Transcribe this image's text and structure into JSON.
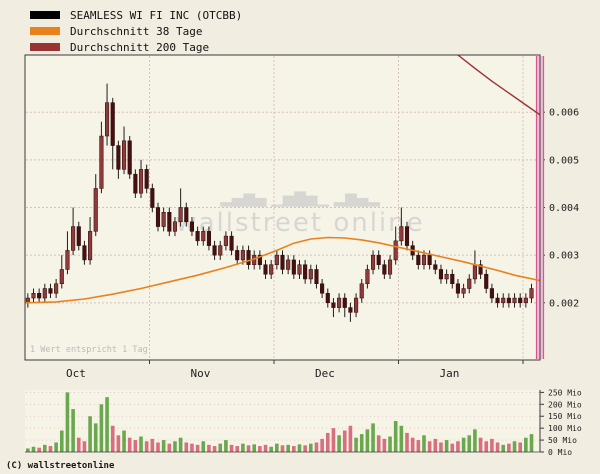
{
  "legend": {
    "items": [
      {
        "label": "SEAMLESS WI FI INC (OTCBB)",
        "color": "#000000"
      },
      {
        "label": "Durchschnitt 38 Tage",
        "color": "#e8821e"
      },
      {
        "label": "Durchschnitt 200 Tage",
        "color": "#9a3333"
      }
    ]
  },
  "watermark": {
    "glyphs": "▂▄▆▄ ▁▅▇▅▁ ▂▆▄▂",
    "text": "wallstreet online"
  },
  "footer": {
    "copyright": "(C) wallstreetonline"
  },
  "chart_data": {
    "type": "candlestick+volume",
    "title": "SEAMLESS WI FI INC (OTCBB)",
    "footnote": "1 Wert entspricht 1 Tag",
    "x_axis": {
      "month_labels": [
        "Oct",
        "Nov",
        "Dec",
        "Jan"
      ],
      "month_boundaries": [
        22,
        44,
        66,
        88
      ],
      "label_days": [
        9,
        31,
        53,
        75
      ],
      "trading_days": 90
    },
    "y_axis": {
      "side": "right",
      "ticks": [
        0.002,
        0.003,
        0.004,
        0.005,
        0.006
      ],
      "range": [
        0.0008,
        0.0072
      ]
    },
    "candles": {
      "open": [
        0.002,
        0.0021,
        0.0022,
        0.0021,
        0.0023,
        0.0022,
        0.0024,
        0.0027,
        0.0031,
        0.0036,
        0.0032,
        0.0029,
        0.0035,
        0.0044,
        0.0055,
        0.0062,
        0.0053,
        0.0048,
        0.0054,
        0.0047,
        0.0043,
        0.0048,
        0.0044,
        0.004,
        0.0036,
        0.0039,
        0.0035,
        0.0037,
        0.004,
        0.0037,
        0.0035,
        0.0033,
        0.0035,
        0.0032,
        0.003,
        0.0032,
        0.0034,
        0.0031,
        0.0029,
        0.0031,
        0.0028,
        0.003,
        0.0028,
        0.0026,
        0.0028,
        0.003,
        0.0027,
        0.0029,
        0.0026,
        0.0028,
        0.0025,
        0.0027,
        0.0024,
        0.0022,
        0.002,
        0.0019,
        0.0021,
        0.0019,
        0.0018,
        0.0021,
        0.0024,
        0.0027,
        0.003,
        0.0028,
        0.0026,
        0.0029,
        0.0033,
        0.0036,
        0.0032,
        0.003,
        0.0028,
        0.003,
        0.0028,
        0.0027,
        0.0025,
        0.0026,
        0.0024,
        0.0022,
        0.0023,
        0.0025,
        0.0028,
        0.0026,
        0.0023,
        0.0021,
        0.002,
        0.0021,
        0.002,
        0.0021,
        0.002,
        0.0021
      ],
      "high": [
        0.0022,
        0.0023,
        0.0023,
        0.0024,
        0.0024,
        0.0025,
        0.003,
        0.0035,
        0.004,
        0.0037,
        0.0033,
        0.0038,
        0.0047,
        0.0058,
        0.0066,
        0.0063,
        0.0054,
        0.0057,
        0.0055,
        0.0048,
        0.005,
        0.0049,
        0.0045,
        0.0041,
        0.004,
        0.004,
        0.0038,
        0.0044,
        0.0041,
        0.0038,
        0.0036,
        0.0036,
        0.0036,
        0.0033,
        0.0033,
        0.0035,
        0.0035,
        0.0032,
        0.0032,
        0.0032,
        0.0031,
        0.0031,
        0.0029,
        0.0029,
        0.0031,
        0.0031,
        0.003,
        0.003,
        0.0029,
        0.0029,
        0.0028,
        0.0028,
        0.0025,
        0.0023,
        0.0021,
        0.0022,
        0.0022,
        0.002,
        0.0022,
        0.0025,
        0.0028,
        0.0031,
        0.0031,
        0.0029,
        0.003,
        0.0036,
        0.004,
        0.0037,
        0.0033,
        0.0031,
        0.0031,
        0.0031,
        0.0029,
        0.0028,
        0.0027,
        0.0027,
        0.0025,
        0.0024,
        0.0026,
        0.0031,
        0.0029,
        0.0027,
        0.0024,
        0.0022,
        0.0022,
        0.0022,
        0.0022,
        0.0022,
        0.0022,
        0.0024
      ],
      "low": [
        0.0019,
        0.002,
        0.002,
        0.002,
        0.0021,
        0.0021,
        0.0023,
        0.0026,
        0.003,
        0.0031,
        0.0028,
        0.0028,
        0.0034,
        0.0043,
        0.0053,
        0.0048,
        0.0046,
        0.0047,
        0.0046,
        0.0042,
        0.0042,
        0.0043,
        0.0039,
        0.0035,
        0.0035,
        0.0034,
        0.0034,
        0.0036,
        0.0036,
        0.0034,
        0.0032,
        0.0032,
        0.0031,
        0.0029,
        0.0029,
        0.0031,
        0.003,
        0.0028,
        0.0028,
        0.0027,
        0.0027,
        0.0027,
        0.0025,
        0.0025,
        0.0027,
        0.0026,
        0.0026,
        0.0025,
        0.0025,
        0.0024,
        0.0024,
        0.0023,
        0.0021,
        0.0019,
        0.0017,
        0.0018,
        0.0017,
        0.0016,
        0.0017,
        0.002,
        0.0023,
        0.0026,
        0.0027,
        0.0025,
        0.0025,
        0.0028,
        0.0032,
        0.0031,
        0.0029,
        0.0027,
        0.0027,
        0.0027,
        0.0026,
        0.0024,
        0.0024,
        0.0023,
        0.0021,
        0.0021,
        0.0022,
        0.0024,
        0.0025,
        0.0022,
        0.002,
        0.0019,
        0.0019,
        0.0019,
        0.0019,
        0.0019,
        0.0019,
        0.002
      ],
      "close": [
        0.0021,
        0.0022,
        0.0021,
        0.0023,
        0.0022,
        0.0024,
        0.0027,
        0.0031,
        0.0036,
        0.0032,
        0.0029,
        0.0035,
        0.0044,
        0.0055,
        0.0062,
        0.0053,
        0.0048,
        0.0054,
        0.0047,
        0.0043,
        0.0048,
        0.0044,
        0.004,
        0.0036,
        0.0039,
        0.0035,
        0.0037,
        0.004,
        0.0037,
        0.0035,
        0.0033,
        0.0035,
        0.0032,
        0.003,
        0.0032,
        0.0034,
        0.0031,
        0.0029,
        0.0031,
        0.0028,
        0.003,
        0.0028,
        0.0026,
        0.0028,
        0.003,
        0.0027,
        0.0029,
        0.0026,
        0.0028,
        0.0025,
        0.0027,
        0.0024,
        0.0022,
        0.002,
        0.0019,
        0.0021,
        0.0019,
        0.0018,
        0.0021,
        0.0024,
        0.0027,
        0.003,
        0.0028,
        0.0026,
        0.0029,
        0.0033,
        0.0036,
        0.0032,
        0.003,
        0.0028,
        0.003,
        0.0028,
        0.0027,
        0.0025,
        0.0026,
        0.0024,
        0.0022,
        0.0023,
        0.0025,
        0.0028,
        0.0026,
        0.0023,
        0.0021,
        0.002,
        0.0021,
        0.002,
        0.0021,
        0.002,
        0.0021,
        0.0023
      ]
    },
    "ma38": {
      "name": "Durchschnitt 38 Tage",
      "color": "#e8821e",
      "points": [
        [
          -0.5,
          0.002
        ],
        [
          5,
          0.00202
        ],
        [
          10,
          0.00208
        ],
        [
          15,
          0.00218
        ],
        [
          20,
          0.0023
        ],
        [
          25,
          0.00244
        ],
        [
          30,
          0.00258
        ],
        [
          35,
          0.00274
        ],
        [
          40,
          0.00292
        ],
        [
          44,
          0.0031
        ],
        [
          47,
          0.00325
        ],
        [
          50,
          0.00334
        ],
        [
          53,
          0.00337
        ],
        [
          56,
          0.00336
        ],
        [
          59,
          0.00332
        ],
        [
          62,
          0.00326
        ],
        [
          65,
          0.00318
        ],
        [
          68,
          0.0031
        ],
        [
          71,
          0.00302
        ],
        [
          74,
          0.00294
        ],
        [
          77,
          0.00286
        ],
        [
          80,
          0.00277
        ],
        [
          83,
          0.00268
        ],
        [
          86,
          0.00258
        ],
        [
          90.8,
          0.00246
        ]
      ]
    },
    "ma200": {
      "name": "Durchschnitt 200 Tage",
      "color": "#9a3333",
      "points": [
        [
          76,
          0.0072
        ],
        [
          79,
          0.00692
        ],
        [
          82,
          0.00665
        ],
        [
          85,
          0.0064
        ],
        [
          88,
          0.00615
        ],
        [
          90.8,
          0.00592
        ]
      ]
    },
    "volume": {
      "unit": "Mio",
      "ticks": [
        0,
        50,
        100,
        150,
        200,
        250
      ],
      "scale_max": 260,
      "values": [
        15,
        22,
        18,
        30,
        25,
        40,
        90,
        250,
        180,
        60,
        45,
        150,
        120,
        200,
        230,
        110,
        70,
        90,
        60,
        50,
        65,
        45,
        55,
        40,
        50,
        35,
        45,
        60,
        40,
        35,
        30,
        45,
        30,
        25,
        35,
        50,
        30,
        25,
        35,
        28,
        32,
        25,
        30,
        22,
        35,
        28,
        30,
        25,
        32,
        28,
        35,
        40,
        55,
        80,
        100,
        70,
        90,
        110,
        60,
        75,
        95,
        120,
        70,
        55,
        65,
        130,
        110,
        80,
        60,
        50,
        70,
        45,
        55,
        40,
        50,
        35,
        45,
        60,
        70,
        95,
        60,
        45,
        55,
        40,
        30,
        35,
        45,
        40,
        60,
        75
      ]
    },
    "colors": {
      "background": "#f1eee1",
      "plot_bg": "#f6f3e7",
      "grid": "#d9bfbf",
      "axis": "#3a3a3a",
      "text": "#1d1d1d",
      "faint": "#bcbcbc",
      "watermark": "#c8c8c8",
      "wick": "#1e1e1e",
      "candle_up": "#8d3b3b",
      "candle_down": "#451010",
      "candle_border": "#2a0808",
      "vol_up": "#6aa84f",
      "vol_down": "#d86e7e",
      "band_fill": "#f2bcd8",
      "band_edge": "#d85590"
    }
  }
}
